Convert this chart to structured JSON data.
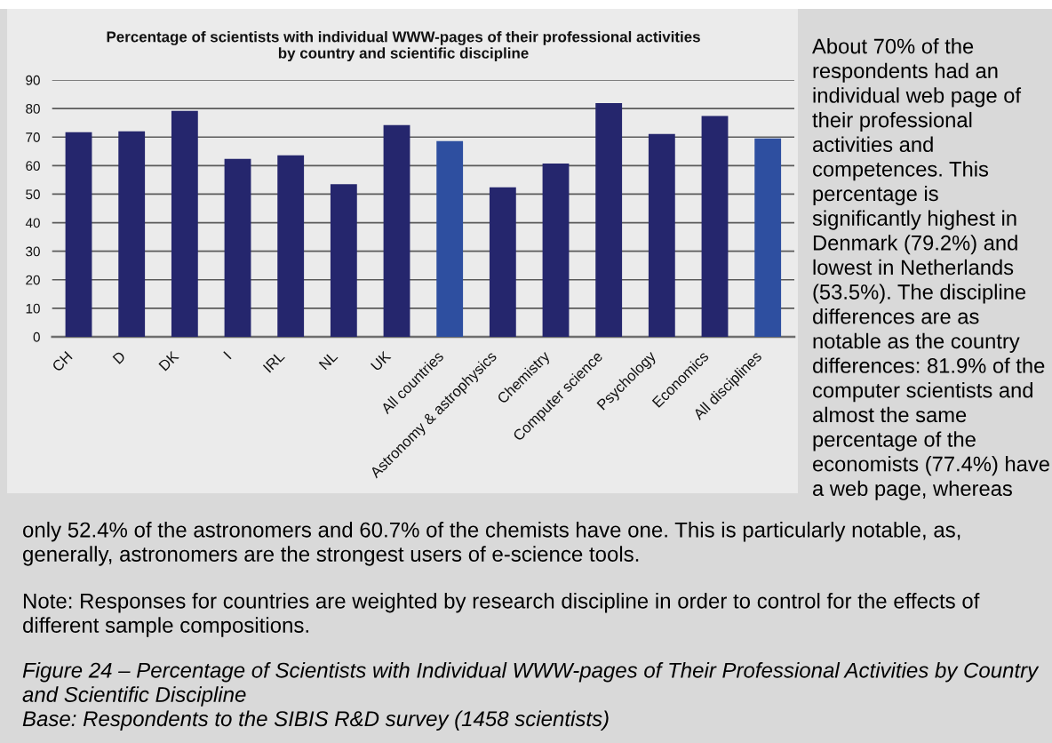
{
  "chart_data": {
    "type": "bar",
    "title": "Percentage of scientists with individual WWW-pages of their professional activities\nby country and scientific discipline",
    "categories": [
      "CH",
      "D",
      "DK",
      "I",
      "IRL",
      "NL",
      "UK",
      "All countries",
      "Astronomy & astrophysics",
      "Chemistry",
      "Computer science",
      "Psychology",
      "Economics",
      "All disciplines"
    ],
    "values": [
      71.7,
      72.0,
      79.2,
      62.4,
      63.6,
      53.5,
      74.2,
      68.6,
      52.4,
      60.7,
      81.9,
      71.1,
      77.4,
      69.5
    ],
    "colors": [
      "#25266d",
      "#25266d",
      "#25266d",
      "#25266d",
      "#25266d",
      "#25266d",
      "#25266d",
      "#2e4fa0",
      "#25266d",
      "#25266d",
      "#25266d",
      "#25266d",
      "#25266d",
      "#2e4fa0"
    ],
    "ylim": [
      0,
      90
    ],
    "yticks": [
      0,
      10,
      20,
      30,
      40,
      50,
      60,
      70,
      80,
      90
    ],
    "grid": "y",
    "annotations": [
      "About 70% of the respondents had an individual web page of their professional activities and competences. This percentage is significantly highest in Denmark (79.2%) and lowest in Netherlands (53.5%). The discipline differences are as notable as the country differences: 81.9% of the computer scientists and almost the same percentage of the economists (77.4%) have a web page, whereas",
      "only 52.4% of the astronomers and 60.7% of the chemists have one. This is particularly notable, as, generally, astronomers are the strongest users of e-science tools.",
      "Note: Responses for countries are weighted by research discipline in order to control for the effects of different sample compositions.",
      "Figure 24 – Percentage of Scientists with Individual WWW-pages of Their Professional Activities by Country and Scientific Discipline\nBase: Respondents to the SIBIS R&D survey (1458 scientists)"
    ]
  }
}
